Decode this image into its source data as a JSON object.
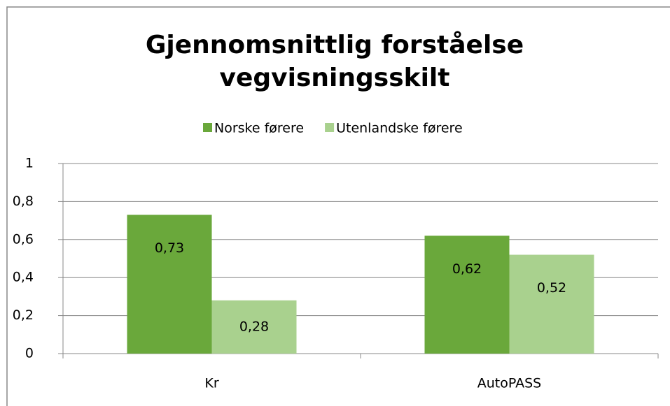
{
  "chart_data": {
    "type": "bar",
    "title": [
      "Gjennomsnittlig forståelse",
      "vegvisningsskilt"
    ],
    "categories": [
      "Kr",
      "AutoPASS"
    ],
    "series": [
      {
        "name": "Norske førere",
        "color": "#6aa83b",
        "values": [
          0.73,
          0.62
        ],
        "value_labels": [
          "0,73",
          "0,62"
        ]
      },
      {
        "name": "Utenlandske førere",
        "color": "#a9d18e",
        "values": [
          0.28,
          0.52
        ],
        "value_labels": [
          "0,28",
          "0,52"
        ]
      }
    ],
    "ylim": [
      0,
      1
    ],
    "yticks": [
      0,
      {
        "value": 0.2,
        "label": "0,2"
      },
      {
        "value": 0.4,
        "label": "0,4"
      },
      {
        "value": 0.6,
        "label": "0,6"
      },
      {
        "value": 0.8,
        "label": "0,8"
      },
      1
    ],
    "grid": true,
    "legend": "top"
  }
}
